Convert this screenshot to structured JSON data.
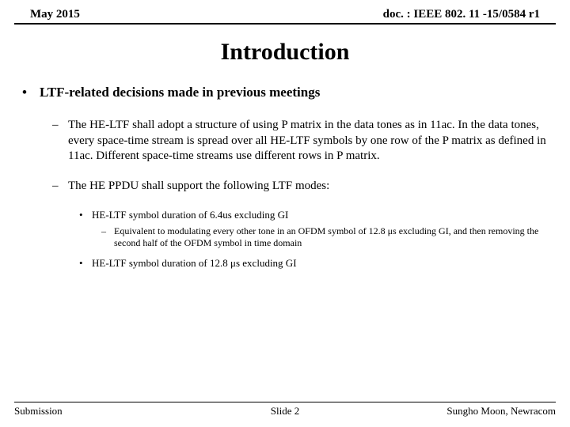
{
  "header": {
    "date": "May 2015",
    "doc": "doc. : IEEE 802. 11 -15/0584 r1"
  },
  "title": "Introduction",
  "l1": {
    "marker": "•",
    "text": "LTF-related decisions made in previous meetings"
  },
  "l2a": {
    "marker": "–",
    "text": "The HE-LTF shall adopt a structure of using P matrix in the data tones as in 11ac. In the data tones, every space-time stream is spread over all HE-LTF symbols by one row of the P matrix as defined in 11ac. Different space-time streams use different rows in P matrix."
  },
  "l2b": {
    "marker": "–",
    "text": "The HE PPDU shall support the following LTF modes:"
  },
  "l3a": {
    "marker": "•",
    "text": "HE-LTF symbol duration of 6.4us excluding GI"
  },
  "l4a": {
    "marker": "–",
    "text": "Equivalent to modulating every other tone in an OFDM symbol of 12.8 μs excluding GI, and then removing the second half of the OFDM symbol in time domain"
  },
  "l3b": {
    "marker": "•",
    "text": "HE-LTF symbol duration of 12.8 μs excluding GI"
  },
  "footer": {
    "left": "Submission",
    "center": "Slide 2",
    "right": "Sungho Moon, Newracom"
  }
}
